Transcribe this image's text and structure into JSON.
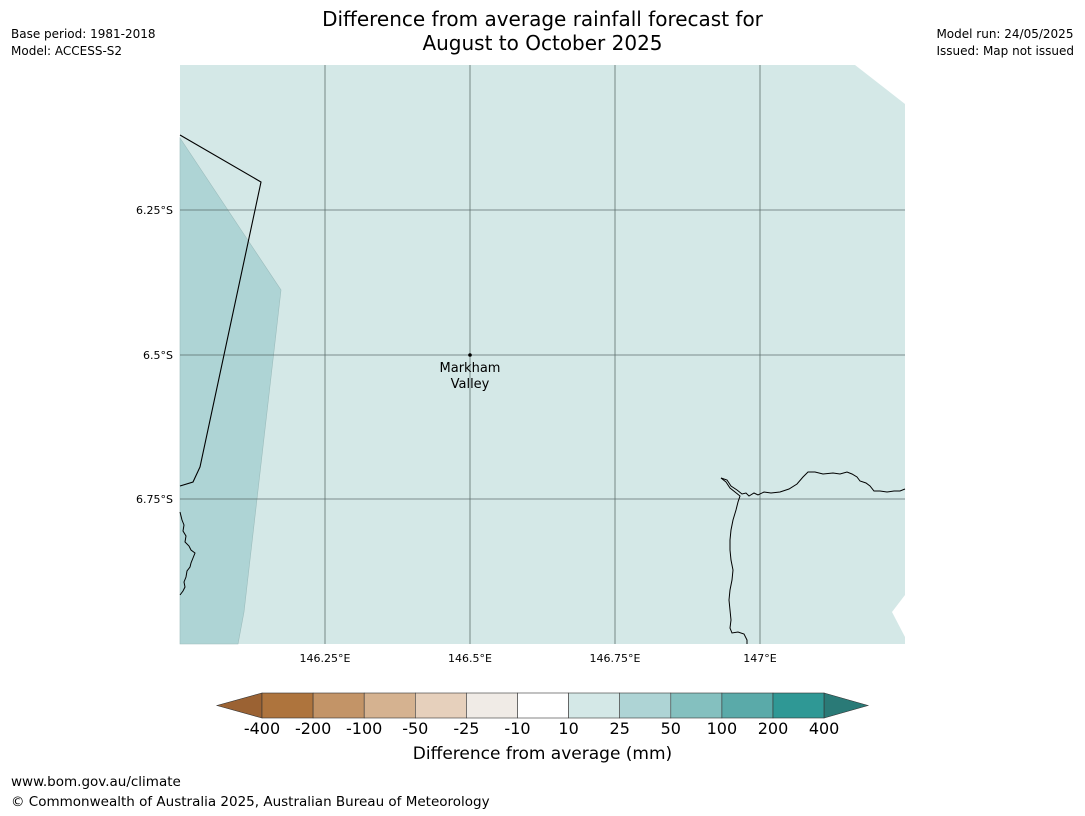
{
  "title": {
    "line1": "Difference from average rainfall forecast for",
    "line2": "August to October 2025"
  },
  "meta_left": {
    "base_period": "Base period: 1981-2018",
    "model": "Model: ACCESS-S2"
  },
  "meta_right": {
    "model_run": "Model run: 24/05/2025",
    "issued": "Issued: Map not issued"
  },
  "map": {
    "lat_labels": [
      "6.25°S",
      "6.5°S",
      "6.75°S"
    ],
    "lon_labels": [
      "146.25°E",
      "146.5°E",
      "146.75°E",
      "147°E"
    ],
    "place": {
      "name_line1": "Markham",
      "name_line2": "Valley"
    },
    "colors": {
      "category_10_25": "#d4e8e7",
      "category_25_50": "#aed4d5",
      "grid": "#4a5a58"
    }
  },
  "colorbar": {
    "ticks": [
      "-400",
      "-200",
      "-100",
      "-50",
      "-25",
      "-10",
      "10",
      "25",
      "50",
      "100",
      "200",
      "400"
    ],
    "colors": [
      "#9b6233",
      "#ae743d",
      "#c39467",
      "#d5b290",
      "#e6d0bc",
      "#f0ebe6",
      "#ffffff",
      "#d4e8e7",
      "#aed4d5",
      "#84c0bf",
      "#5aaaa9",
      "#2f9895",
      "#2a7a77"
    ],
    "title": "Difference from average (mm)"
  },
  "footer": {
    "url": "www.bom.gov.au/climate",
    "copyright": "© Commonwealth of Australia 2025, Australian Bureau of Meteorology"
  }
}
